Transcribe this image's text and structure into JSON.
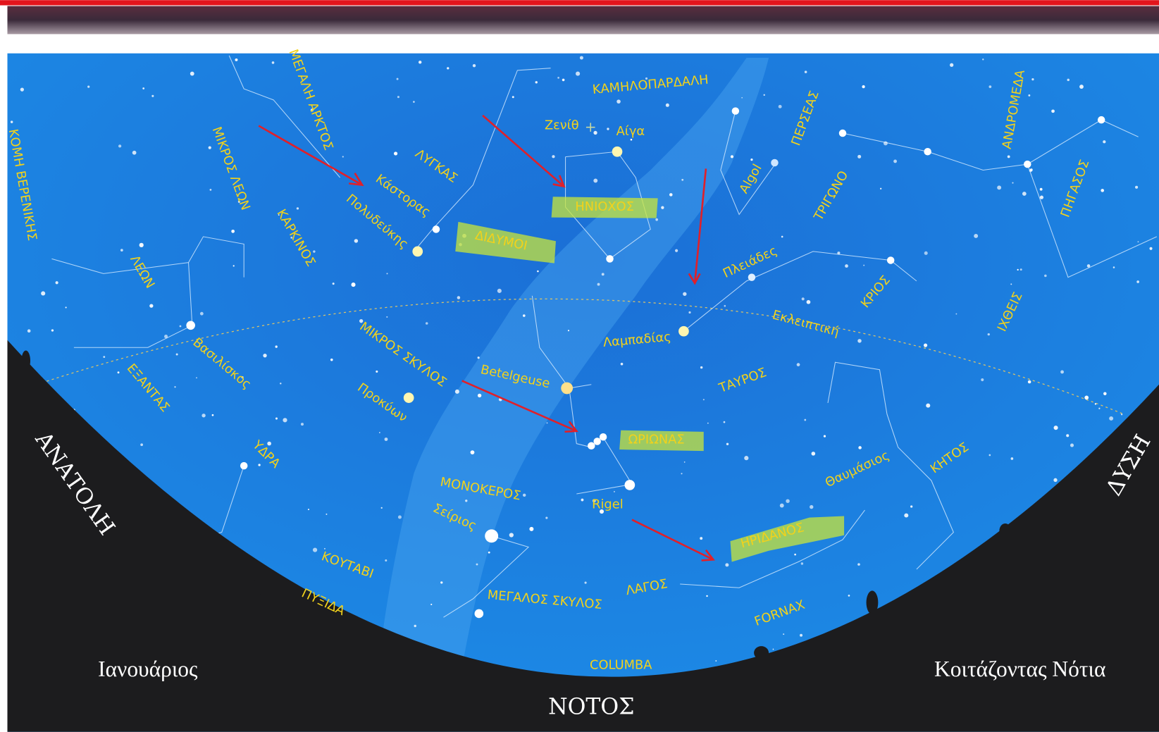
{
  "sky_labels": [
    "ΚΑΜΗΛΟΠΑΡΔΑΛΗ",
    "ΜΕΓΑΛΗ ΑΡΚΤΟΣ",
    "ΜΙΚΡΟΣ ΛΕΩΝ",
    "ΚΟΜΗ ΒΕΡΕΝΙΚΗΣ",
    "ΛΥΓΚΑΣ",
    "Κάστορας",
    "Πολυδεύκης",
    "Ζενίθ",
    "Αίγα",
    "ΗΝΙΟΧΟΣ",
    "ΔΙΔΥΜΟΙ",
    "ΚΑΡΚΙΝΟΣ",
    "ΛΕΩΝ",
    "ΠΕΡΣΕΑΣ",
    "Algol",
    "ΤΡΙΓΩΝΟ",
    "ΑΝΔΡΟΜΕΔΑ",
    "ΠΗΓΑΣΟΣ",
    "Πλειάδες",
    "ΚΡΙΟΣ",
    "ΙΧΘΕΙΣ",
    "Εκλειπτική",
    "Λαμπαδίας",
    "ΤΑΥΡΟΣ",
    "ΜΙΚΡΟΣ ΣΚΥΛΟΣ",
    "Βασιλίσκος",
    "ΕΞΑΝΤΑΣ",
    "Betelgeuse",
    "Προκύων",
    "ΩΡΙΩΝΑΣ",
    "ΥΔΡΑ",
    "ΜΟΝΟΚΕΡΟΣ",
    "Rigel",
    "Θαυμάσιος",
    "ΚΗΤΟΣ",
    "Σείριος",
    "ΗΡΙΔΑΝΟΣ",
    "ΚΟΥΤΑΒΙ",
    "ΛΑΓΟΣ",
    "ΜΕΓΑΛΟΣ ΣΚΥΛΟΣ",
    "ΠΥΞΙΔΑ",
    "FORNAX",
    "COLUMBA"
  ],
  "directions": {
    "east": "ΑΝΑΤΟΛΗ",
    "west": "ΔΥΣΗ",
    "south": "ΝΟΤΟΣ"
  },
  "footer": {
    "month": "Ιανουάριος",
    "looking": "Κοιτάζοντας Νότια"
  }
}
